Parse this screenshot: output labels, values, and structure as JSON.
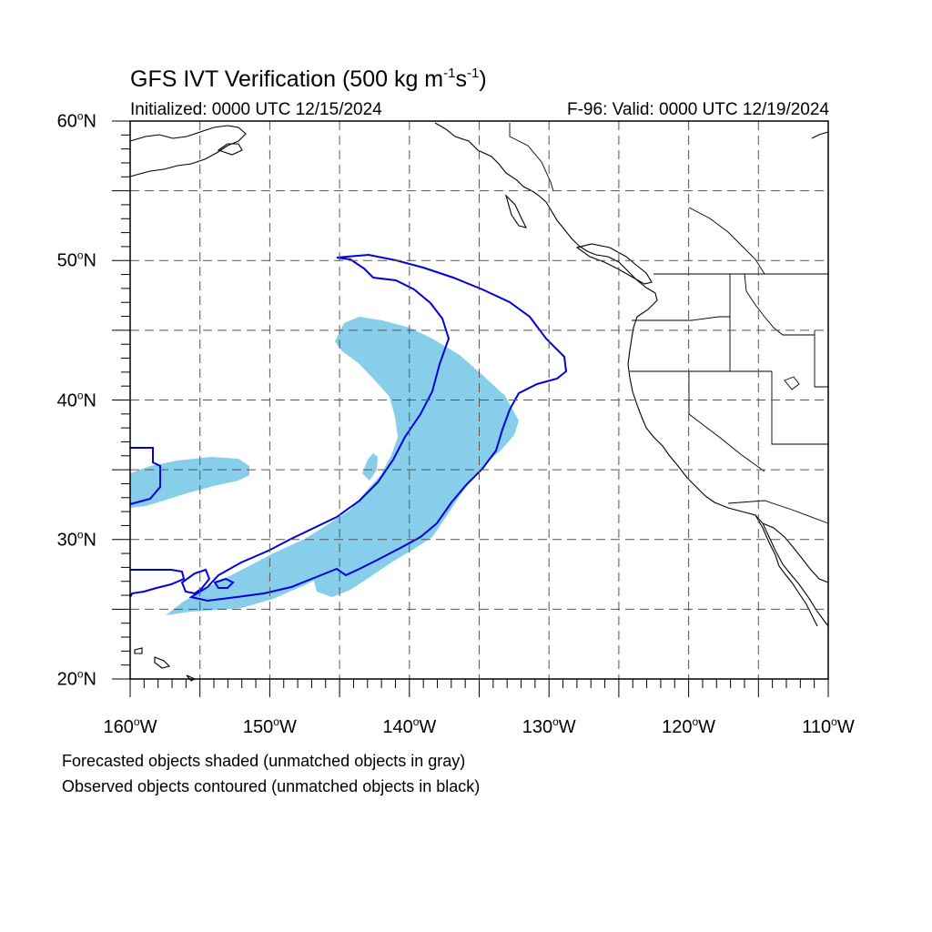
{
  "title": {
    "main": "GFS IVT Verification (500 kg m",
    "sup1": "-1",
    "mid": "s",
    "sup2": "-1",
    "end": ")"
  },
  "initialized": "Initialized: 0000 UTC 12/15/2024",
  "valid": "F-96: Valid: 0000 UTC 12/19/2024",
  "map": {
    "lon_range": [
      -160,
      -110
    ],
    "lat_range": [
      20,
      60
    ],
    "grid": "dashed every 5 degrees",
    "lat_labels": [
      {
        "value": 60,
        "num": "60",
        "hem": "N"
      },
      {
        "value": 50,
        "num": "50",
        "hem": "N"
      },
      {
        "value": 40,
        "num": "40",
        "hem": "N"
      },
      {
        "value": 30,
        "num": "30",
        "hem": "N"
      },
      {
        "value": 20,
        "num": "20",
        "hem": "N"
      }
    ],
    "lon_labels": [
      {
        "value": -160,
        "num": "160",
        "hem": "W"
      },
      {
        "value": -150,
        "num": "150",
        "hem": "W"
      },
      {
        "value": -140,
        "num": "140",
        "hem": "W"
      },
      {
        "value": -130,
        "num": "130",
        "hem": "W"
      },
      {
        "value": -120,
        "num": "120",
        "hem": "W"
      },
      {
        "value": -110,
        "num": "110",
        "hem": "W"
      }
    ],
    "forecast_fill_color": "#87ceeb",
    "observed_contour_color": "#0000dd",
    "coastline_color": "#000000"
  },
  "captions": [
    "Forecasted objects shaded (unmatched objects in gray)",
    "Observed objects contoured (unmatched objects in black)"
  ]
}
